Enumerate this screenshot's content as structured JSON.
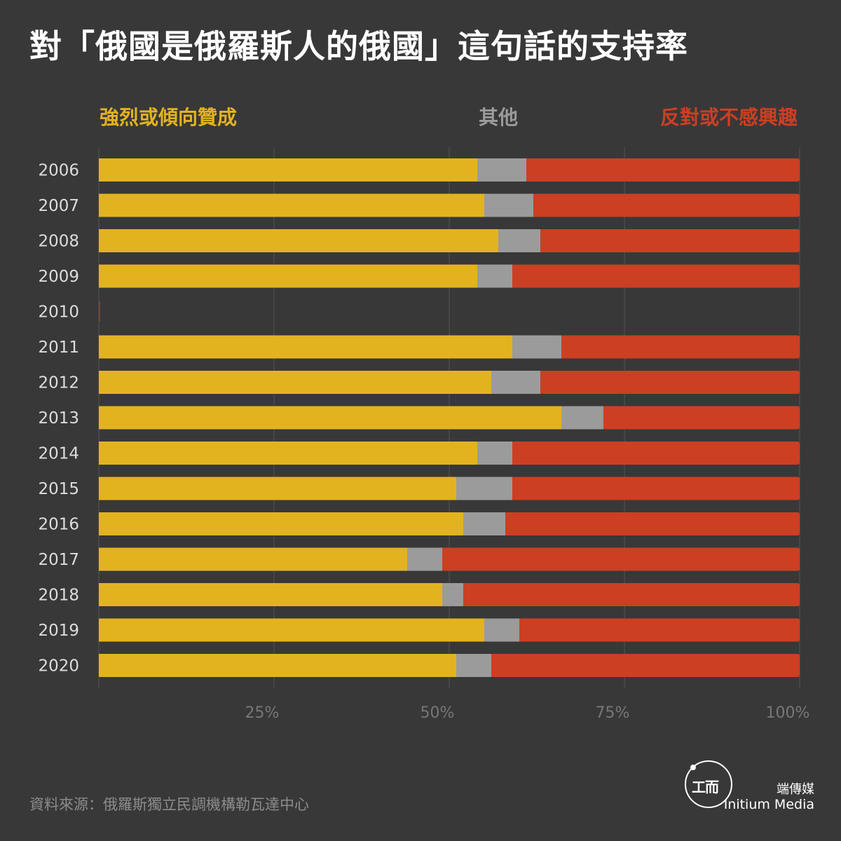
{
  "title": "對「俄國是俄羅斯人的俄國」這句話的支持率",
  "legend": {
    "support": "強烈或傾向贊成",
    "other": "其他",
    "oppose": "反對或不感興趣"
  },
  "colors": {
    "support": "#E3B31F",
    "other": "#9B9B9B",
    "oppose": "#CC3F23",
    "background": "#383838",
    "grid": "#555555",
    "year_label": "#DDDDDD",
    "tick_label": "#777777"
  },
  "source": "資料來源：俄羅斯獨立民調機構勒瓦達中心",
  "brand": {
    "name_cn": "端傳媒",
    "name_en": "Initium Media",
    "logo_icon": "initium-logo-icon"
  },
  "chart_data": {
    "type": "bar",
    "orientation": "horizontal",
    "stacked": true,
    "categories": [
      "2006",
      "2007",
      "2008",
      "2009",
      "2010",
      "2011",
      "2012",
      "2013",
      "2014",
      "2015",
      "2016",
      "2017",
      "2018",
      "2019",
      "2020"
    ],
    "series": [
      {
        "name": "強烈或傾向贊成",
        "values": [
          54,
          55,
          57,
          54,
          null,
          59,
          56,
          66,
          54,
          51,
          52,
          44,
          49,
          55,
          51
        ]
      },
      {
        "name": "其他",
        "values": [
          7,
          7,
          6,
          5,
          null,
          7,
          7,
          6,
          5,
          8,
          6,
          5,
          3,
          5,
          5
        ]
      },
      {
        "name": "反對或不感興趣",
        "values": [
          39,
          38,
          37,
          41,
          null,
          34,
          37,
          28,
          41,
          41,
          42,
          51,
          48,
          40,
          44
        ]
      }
    ],
    "xlim": [
      0,
      100
    ],
    "xticks": [
      25,
      50,
      75,
      100
    ],
    "xtick_labels": [
      "25%",
      "50%",
      "75%",
      "100%"
    ],
    "grid": true,
    "legend_position": "top"
  }
}
